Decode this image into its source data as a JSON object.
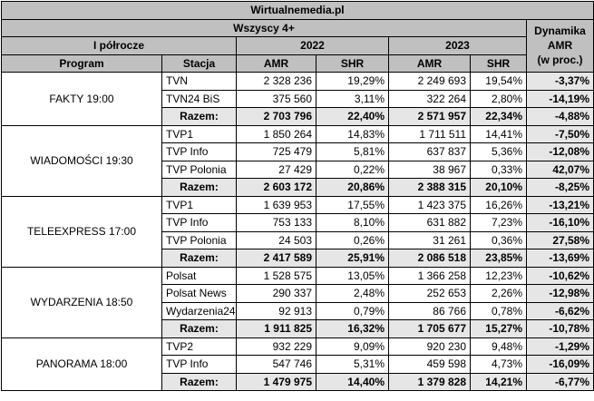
{
  "title": "Wirtualnemedia.pl",
  "subtitle": "Wszyscy 4+",
  "period": "I półrocze",
  "year1": "2022",
  "year2": "2023",
  "dyn_header": [
    "Dynamika",
    "AMR",
    "(w proc.)"
  ],
  "col_headers": {
    "program": "Program",
    "station": "Stacja",
    "amr": "AMR",
    "shr": "SHR"
  },
  "groups": [
    {
      "program": "FAKTY 19:00",
      "rows": [
        {
          "station": "TVN",
          "amr22": "2 328 236",
          "shr22": "19,29%",
          "amr23": "2 249 693",
          "shr23": "19,54%",
          "dyn": "-3,37%",
          "total": false
        },
        {
          "station": "TVN24 BiS",
          "amr22": "375 560",
          "shr22": "3,11%",
          "amr23": "322 264",
          "shr23": "2,80%",
          "dyn": "-14,19%",
          "total": false
        },
        {
          "station": "Razem:",
          "amr22": "2 703 796",
          "shr22": "22,40%",
          "amr23": "2 571 957",
          "shr23": "22,34%",
          "dyn": "-4,88%",
          "total": true
        }
      ]
    },
    {
      "program": "WIADOMOŚCI 19:30",
      "rows": [
        {
          "station": "TVP1",
          "amr22": "1 850 264",
          "shr22": "14,83%",
          "amr23": "1 711 511",
          "shr23": "14,41%",
          "dyn": "-7,50%",
          "total": false
        },
        {
          "station": "TVP Info",
          "amr22": "725 479",
          "shr22": "5,81%",
          "amr23": "637 837",
          "shr23": "5,36%",
          "dyn": "-12,08%",
          "total": false
        },
        {
          "station": "TVP Polonia",
          "amr22": "27 429",
          "shr22": "0,22%",
          "amr23": "38 967",
          "shr23": "0,33%",
          "dyn": "42,07%",
          "total": false
        },
        {
          "station": "Razem:",
          "amr22": "2 603 172",
          "shr22": "20,86%",
          "amr23": "2 388 315",
          "shr23": "20,10%",
          "dyn": "-8,25%",
          "total": true
        }
      ]
    },
    {
      "program": "TELEEXPRESS 17:00",
      "rows": [
        {
          "station": "TVP1",
          "amr22": "1 639 953",
          "shr22": "17,55%",
          "amr23": "1 423 375",
          "shr23": "16,26%",
          "dyn": "-13,21%",
          "total": false
        },
        {
          "station": "TVP Info",
          "amr22": "753 133",
          "shr22": "8,10%",
          "amr23": "631 882",
          "shr23": "7,23%",
          "dyn": "-16,10%",
          "total": false
        },
        {
          "station": "TVP Polonia",
          "amr22": "24 503",
          "shr22": "0,26%",
          "amr23": "31 261",
          "shr23": "0,36%",
          "dyn": "27,58%",
          "total": false
        },
        {
          "station": "Razem:",
          "amr22": "2 417 589",
          "shr22": "25,91%",
          "amr23": "2 086 518",
          "shr23": "23,85%",
          "dyn": "-13,69%",
          "total": true
        }
      ]
    },
    {
      "program": "WYDARZENIA 18:50",
      "rows": [
        {
          "station": "Polsat",
          "amr22": "1 528 575",
          "shr22": "13,05%",
          "amr23": "1 366 258",
          "shr23": "12,23%",
          "dyn": "-10,62%",
          "total": false
        },
        {
          "station": "Polsat News",
          "amr22": "290 337",
          "shr22": "2,48%",
          "amr23": "252 653",
          "shr23": "2,26%",
          "dyn": "-12,98%",
          "total": false
        },
        {
          "station": "Wydarzenia24",
          "amr22": "92 913",
          "shr22": "0,79%",
          "amr23": "86 766",
          "shr23": "0,78%",
          "dyn": "-6,62%",
          "total": false
        },
        {
          "station": "Razem:",
          "amr22": "1 911 825",
          "shr22": "16,32%",
          "amr23": "1 705 677",
          "shr23": "15,27%",
          "dyn": "-10,78%",
          "total": true
        }
      ]
    },
    {
      "program": "PANORAMA 18:00",
      "rows": [
        {
          "station": "TVP2",
          "amr22": "932 229",
          "shr22": "9,09%",
          "amr23": "920 230",
          "shr23": "9,48%",
          "dyn": "-1,29%",
          "total": false
        },
        {
          "station": "TVP Info",
          "amr22": "547 746",
          "shr22": "5,31%",
          "amr23": "459 598",
          "shr23": "4,73%",
          "dyn": "-16,09%",
          "total": false
        },
        {
          "station": "Razem:",
          "amr22": "1 479 975",
          "shr22": "14,40%",
          "amr23": "1 379 828",
          "shr23": "14,21%",
          "dyn": "-6,77%",
          "total": true
        }
      ]
    }
  ]
}
